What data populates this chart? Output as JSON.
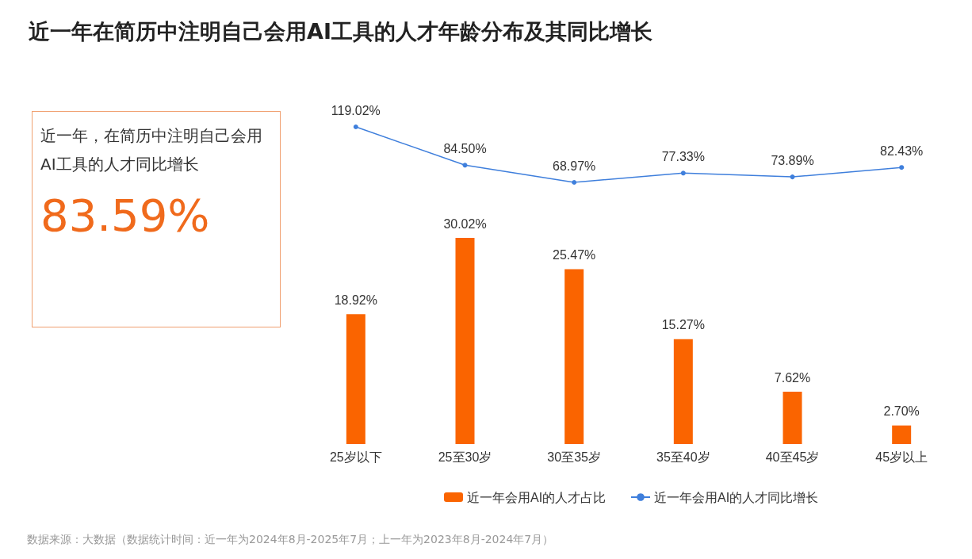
{
  "chart_data": [
    {
      "type": "line",
      "title": "近一年在简历中注明自己会用AI工具的人才年龄分布及其同比增长",
      "series": [
        {
          "name": "近一年会用AI的人才同比增长",
          "color": "#3f7fdc",
          "values": [
            119.02,
            84.5,
            68.97,
            77.33,
            73.89,
            82.43
          ],
          "value_labels": [
            "119.02%",
            "84.50%",
            "68.97%",
            "77.33%",
            "73.89%",
            "82.43%"
          ]
        }
      ],
      "marker": "circle",
      "tick_labels": false,
      "legend": "bottom"
    },
    {
      "type": "bar",
      "categories": [
        "25岁以下",
        "25至30岁",
        "30至35岁",
        "35至40岁",
        "40至45岁",
        "45岁以上"
      ],
      "series": [
        {
          "name": "近一年会用AI的人才占比",
          "color": "#fa6400",
          "values": [
            18.92,
            30.02,
            25.47,
            15.27,
            7.62,
            2.7
          ],
          "value_labels": [
            "18.92%",
            "30.02%",
            "25.47%",
            "15.27%",
            "7.62%",
            "2.70%"
          ]
        }
      ],
      "annotations": [
        "近一年，在简历中注明自己会用AI工具的人才同比增长",
        "83.59%",
        "数据来源：大数据（数据统计时间：近一年为2024年8月-2025年7月；上一年为2023年8月-2024年7月）"
      ],
      "legend": "bottom"
    }
  ]
}
